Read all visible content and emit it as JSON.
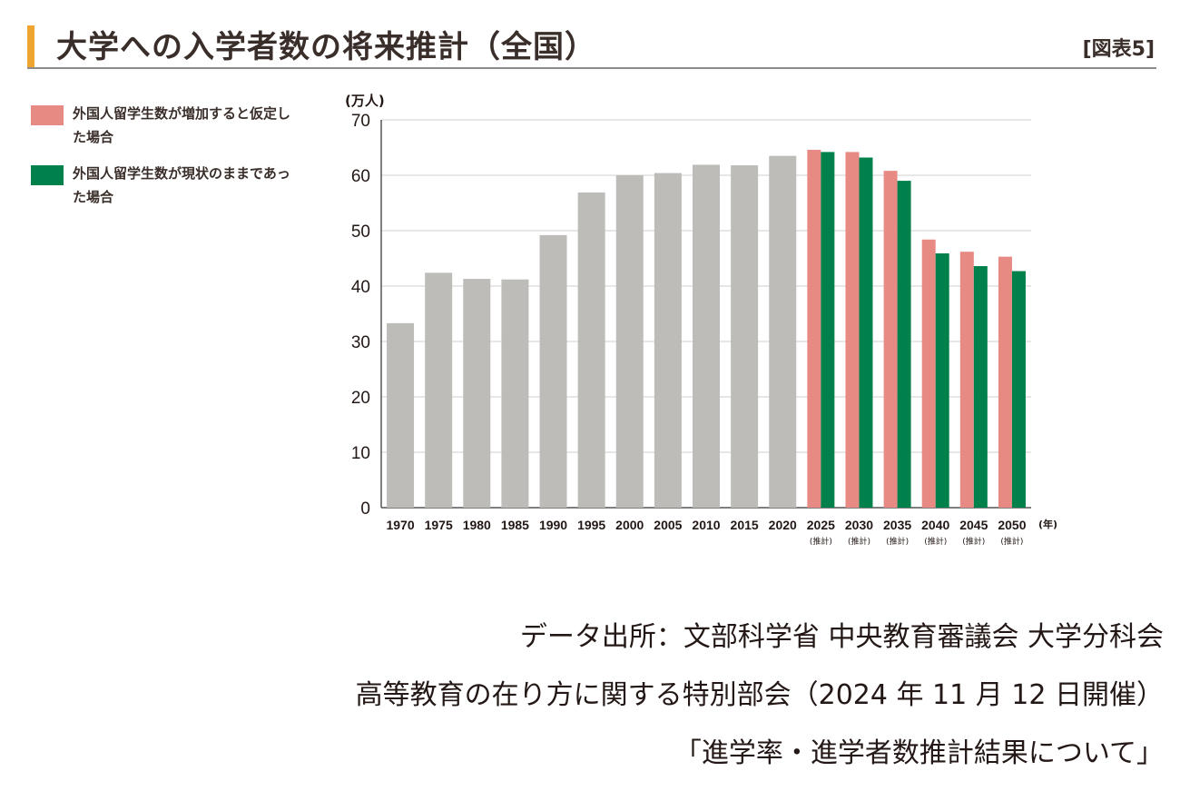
{
  "header": {
    "title": "大学への入学者数の将来推計（全国）",
    "figure_tag": "[図表5]"
  },
  "legend": [
    {
      "label": "外国人留学生数が増加すると仮定した場合",
      "color": "#e88a84"
    },
    {
      "label": "外国人留学生数が現状のままであった場合",
      "color": "#00804a"
    }
  ],
  "colors": {
    "historical": "#bebcb8",
    "increase": "#e88a84",
    "current": "#00804a",
    "grid": "#cfcfcf",
    "axis": "#555555"
  },
  "chart_data": {
    "type": "bar",
    "ylabel": "(万人)",
    "xlabel": "(年)",
    "ylim": [
      0,
      70
    ],
    "yticks": [
      0,
      10,
      20,
      30,
      40,
      50,
      60,
      70
    ],
    "grid": true,
    "legend_position": "top-left",
    "categories": [
      "1970",
      "1975",
      "1980",
      "1985",
      "1990",
      "1995",
      "2000",
      "2005",
      "2010",
      "2015",
      "2020",
      "2025",
      "2030",
      "2035",
      "2040",
      "2045",
      "2050"
    ],
    "forecast_label": "(推計)",
    "forecast_categories": [
      "2025",
      "2030",
      "2035",
      "2040",
      "2045",
      "2050"
    ],
    "historical": {
      "values": [
        33.3,
        42.4,
        41.3,
        41.2,
        49.2,
        56.9,
        60.0,
        60.4,
        61.9,
        61.8,
        63.5,
        null,
        null,
        null,
        null,
        null,
        null
      ]
    },
    "series": [
      {
        "name": "外国人留学生数が増加すると仮定した場合",
        "values": [
          null,
          null,
          null,
          null,
          null,
          null,
          null,
          null,
          null,
          null,
          null,
          64.6,
          64.2,
          60.8,
          48.4,
          46.2,
          45.3
        ]
      },
      {
        "name": "外国人留学生数が現状のままであった場合",
        "values": [
          null,
          null,
          null,
          null,
          null,
          null,
          null,
          null,
          null,
          null,
          null,
          64.2,
          63.2,
          59.0,
          45.9,
          43.6,
          42.7
        ]
      }
    ]
  },
  "source": {
    "line1": "データ出所：文部科学省 中央教育審議会 大学分科会",
    "line2": "高等教育の在り方に関する特別部会（2024 年 11 月 12 日開催）",
    "line3": "「進学率・進学者数推計結果について」"
  }
}
